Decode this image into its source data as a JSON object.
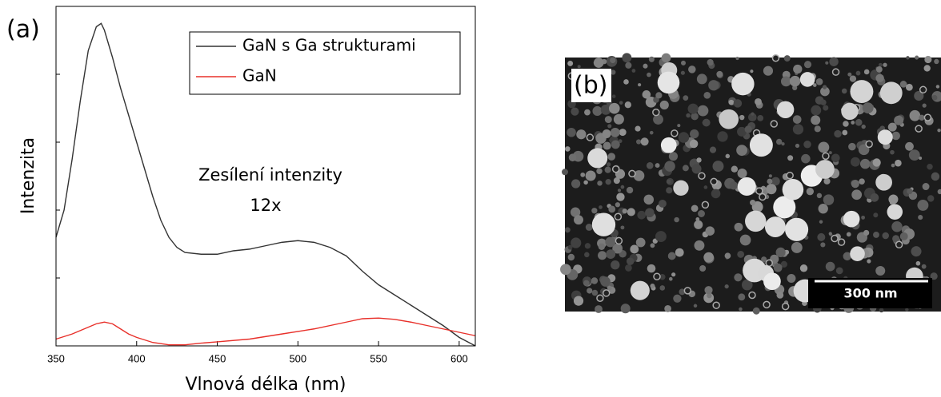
{
  "chart_data": {
    "type": "line",
    "panel_label": "(a)",
    "xlabel": "Vlnová délka (nm)",
    "ylabel": "Intenzita",
    "annotation": [
      "Zesílení intenzity",
      "12x"
    ],
    "xlim": [
      350,
      610
    ],
    "xticks": [
      350,
      400,
      450,
      500,
      550,
      600
    ],
    "ylim": [
      0,
      100
    ],
    "series": [
      {
        "name": "GaN s Ga strukturami",
        "color": "#333333",
        "x": [
          350,
          355,
          360,
          365,
          370,
          375,
          378,
          380,
          385,
          390,
          395,
          400,
          405,
          410,
          415,
          420,
          425,
          430,
          440,
          450,
          460,
          470,
          480,
          490,
          500,
          510,
          520,
          530,
          540,
          550,
          560,
          570,
          580,
          590,
          600,
          610
        ],
        "values": [
          32,
          40,
          55,
          72,
          87,
          94,
          95,
          93,
          85,
          76,
          68,
          60,
          52,
          44,
          37,
          32,
          29,
          27.5,
          27,
          27,
          28,
          28.5,
          29.5,
          30.5,
          31,
          30.5,
          29,
          26.5,
          22,
          18,
          15,
          12,
          9,
          6,
          2.5,
          0
        ]
      },
      {
        "name": "GaN",
        "color": "#e8302a",
        "x": [
          350,
          360,
          370,
          375,
          380,
          385,
          390,
          395,
          400,
          410,
          420,
          430,
          440,
          450,
          470,
          490,
          510,
          530,
          540,
          550,
          560,
          570,
          580,
          590,
          600,
          610
        ],
        "values": [
          2,
          3.5,
          5.5,
          6.5,
          7,
          6.5,
          5,
          3.5,
          2.5,
          1,
          0.3,
          0.3,
          0.8,
          1.2,
          2,
          3.5,
          5,
          7,
          8,
          8.2,
          7.8,
          7,
          6,
          5,
          4,
          3
        ]
      }
    ]
  },
  "image_panel": {
    "label": "(b)",
    "scale_bar": "300 nm"
  }
}
